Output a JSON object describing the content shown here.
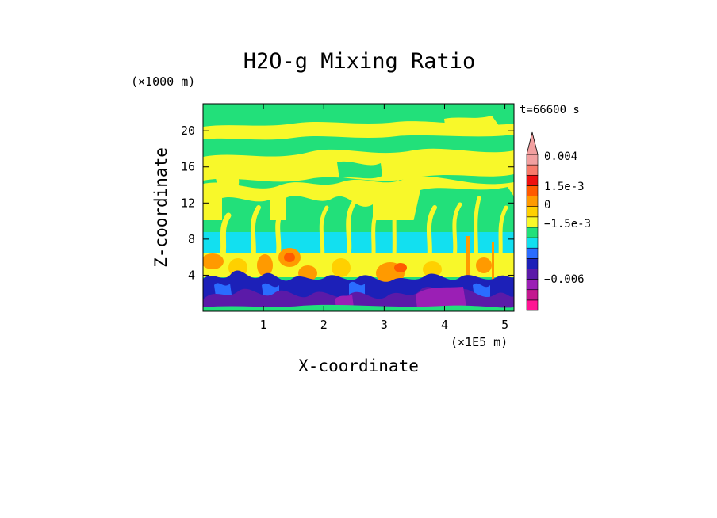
{
  "chart_data": {
    "type": "heatmap",
    "title": "H2O-g Mixing Ratio",
    "xlabel": "X-coordinate",
    "ylabel": "Z-coordinate",
    "x_unit": "(×1E5 m)",
    "y_unit": "(×1000 m)",
    "time_label": "t=66600 s",
    "xlim": [
      0,
      5.15
    ],
    "ylim": [
      0,
      23
    ],
    "x_ticks": [
      1,
      2,
      3,
      4,
      5
    ],
    "y_ticks": [
      4,
      8,
      12,
      16,
      20
    ],
    "colorbar": {
      "colors": [
        "#ff1493",
        "#c3188f",
        "#9b1fb5",
        "#5b1aa8",
        "#1c20b8",
        "#2a6cff",
        "#12e0f0",
        "#22e07a",
        "#f8f82a",
        "#ffd000",
        "#ff9a00",
        "#ff5a00",
        "#ee1010",
        "#f87a6a",
        "#f2a0a0"
      ],
      "tick_labels": [
        "0.004",
        "1.5e-3",
        "0",
        "−1.5e-3",
        "−0.006"
      ],
      "extend_max": true
    },
    "field_bands": [
      {
        "z": [
          19.6,
          23
        ],
        "dominant": "green"
      },
      {
        "z": [
          17.0,
          19.6
        ],
        "dominant": "yellow"
      },
      {
        "z": [
          10.0,
          17.0
        ],
        "dominant": "yellow-green"
      },
      {
        "z": [
          8.0,
          10.0
        ],
        "dominant": "green"
      },
      {
        "z": [
          6.0,
          8.0
        ],
        "dominant": "cyan"
      },
      {
        "z": [
          4.0,
          6.0
        ],
        "dominant": "yellow-orange"
      },
      {
        "z": [
          0,
          4.0
        ],
        "dominant": "blue-purple"
      }
    ]
  }
}
